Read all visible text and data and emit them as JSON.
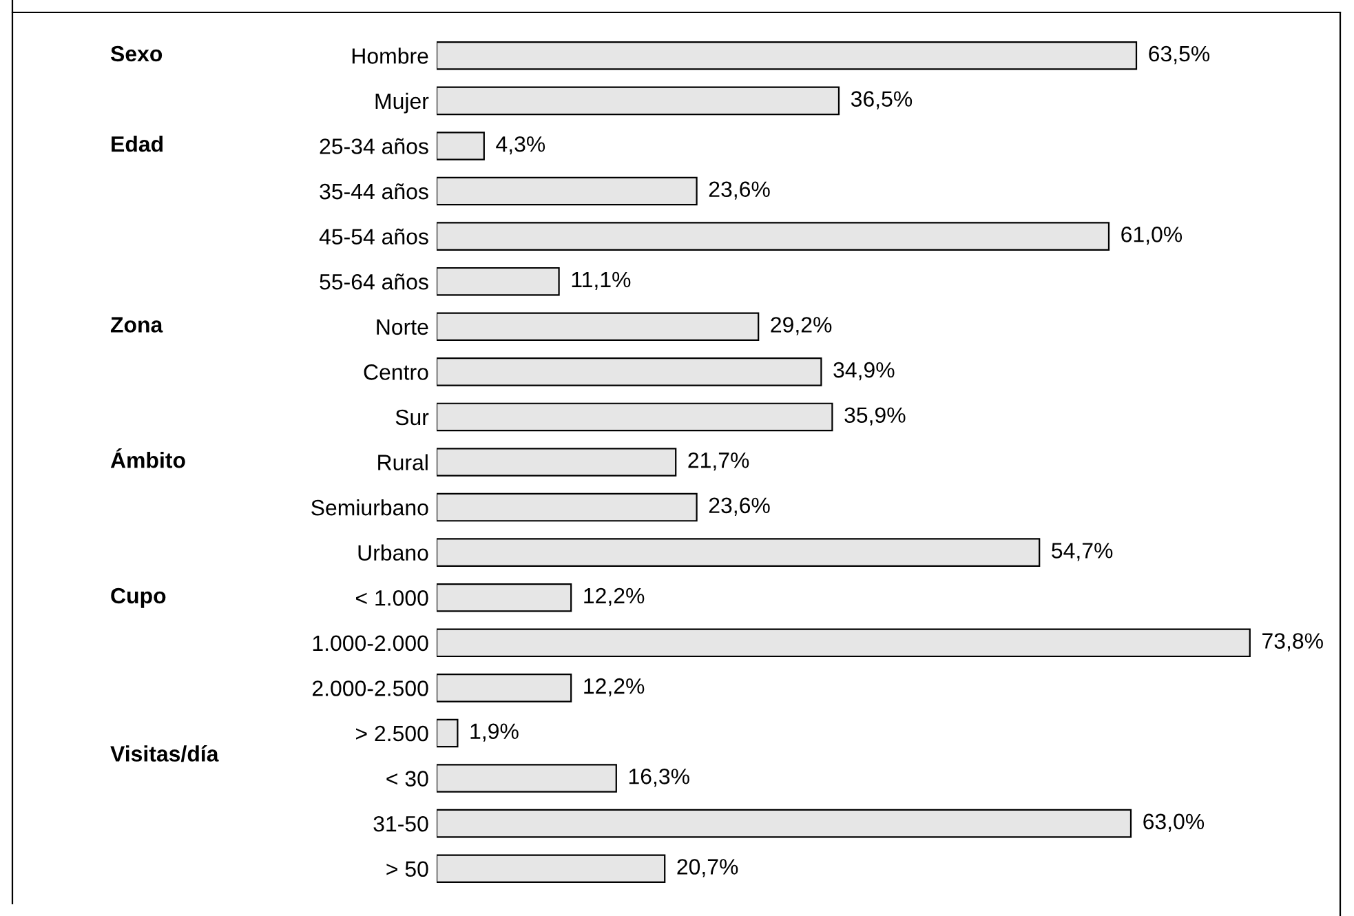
{
  "chart_data": {
    "type": "bar",
    "orientation": "horizontal",
    "categories": [
      "Hombre",
      "Mujer",
      "25-34 años",
      "35-44 años",
      "45-54 años",
      "55-64 años",
      "Norte",
      "Centro",
      "Sur",
      "Rural",
      "Semiurbano",
      "Urbano",
      "< 1.000",
      "1.000-2.000",
      "2.000-2.500",
      "> 2.500",
      "< 30",
      "31-50",
      "> 50"
    ],
    "values": [
      63.5,
      36.5,
      4.3,
      23.6,
      61.0,
      11.1,
      29.2,
      34.9,
      35.9,
      21.7,
      23.6,
      54.7,
      12.2,
      73.8,
      12.2,
      1.9,
      16.3,
      63.0,
      20.7
    ],
    "value_labels": [
      "63,5%",
      "36,5%",
      "4,3%",
      "23,6%",
      "61,0%",
      "11,1%",
      "29,2%",
      "34,9%",
      "35,9%",
      "21,7%",
      "23,6%",
      "54,7%",
      "12,2%",
      "73,8%",
      "12,2%",
      "1,9%",
      "16,3%",
      "63,0%",
      "20,7%"
    ],
    "color": "#e6e6e6",
    "xlim": [
      0,
      82
    ],
    "tick_labels": "y",
    "grid": false,
    "legend": false,
    "annotations": [
      "Sexo",
      "Edad",
      "Zona",
      "Ámbito",
      "Cupo",
      "Visitas/día"
    ]
  }
}
